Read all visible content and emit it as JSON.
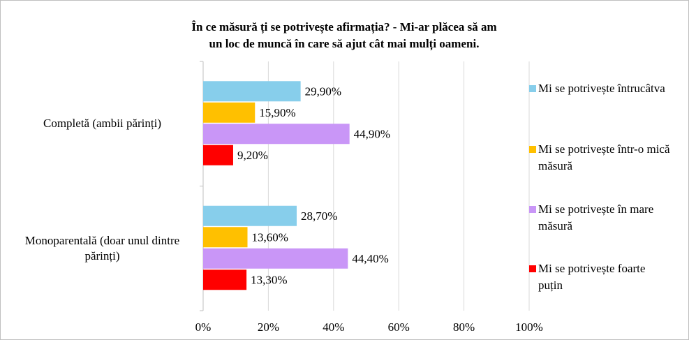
{
  "chart_data": {
    "type": "hbar",
    "title": [
      "În ce măsură ți se potrivește afirmația? - Mi-ar plăcea să am",
      "un loc de muncă în care să ajut cât mai mulți oameni."
    ],
    "categories": [
      "Completă (ambii părinți)",
      "Monoparentală (doar unul dintre părinți)"
    ],
    "series": [
      {
        "name": "Mi se potrivește întrucâtva",
        "color": "#87ceeb",
        "values": [
          29.9,
          28.7
        ],
        "value_labels": [
          "29,90%",
          "28,70%"
        ]
      },
      {
        "name": "Mi se potrivește într-o mică măsură",
        "color": "#ffc000",
        "values": [
          15.9,
          13.6
        ],
        "value_labels": [
          "15,90%",
          "13,60%"
        ]
      },
      {
        "name": "Mi se potrivește în mare măsură",
        "color": "#c996f7",
        "values": [
          44.9,
          44.4
        ],
        "value_labels": [
          "44,90%",
          "44,40%"
        ]
      },
      {
        "name": "Mi se potrivește foarte puțin",
        "color": "#ff0000",
        "values": [
          9.2,
          13.3
        ],
        "value_labels": [
          "9,20%",
          "13,30%"
        ]
      }
    ],
    "xlim": [
      0,
      100
    ],
    "xticks": [
      {
        "value": 0,
        "label": "0%"
      },
      {
        "value": 20,
        "label": "20%"
      },
      {
        "value": 40,
        "label": "40%"
      },
      {
        "value": 60,
        "label": "60%"
      },
      {
        "value": 80,
        "label": "80%"
      },
      {
        "value": 100,
        "label": "100%"
      }
    ],
    "grid": true,
    "legend": "right"
  }
}
